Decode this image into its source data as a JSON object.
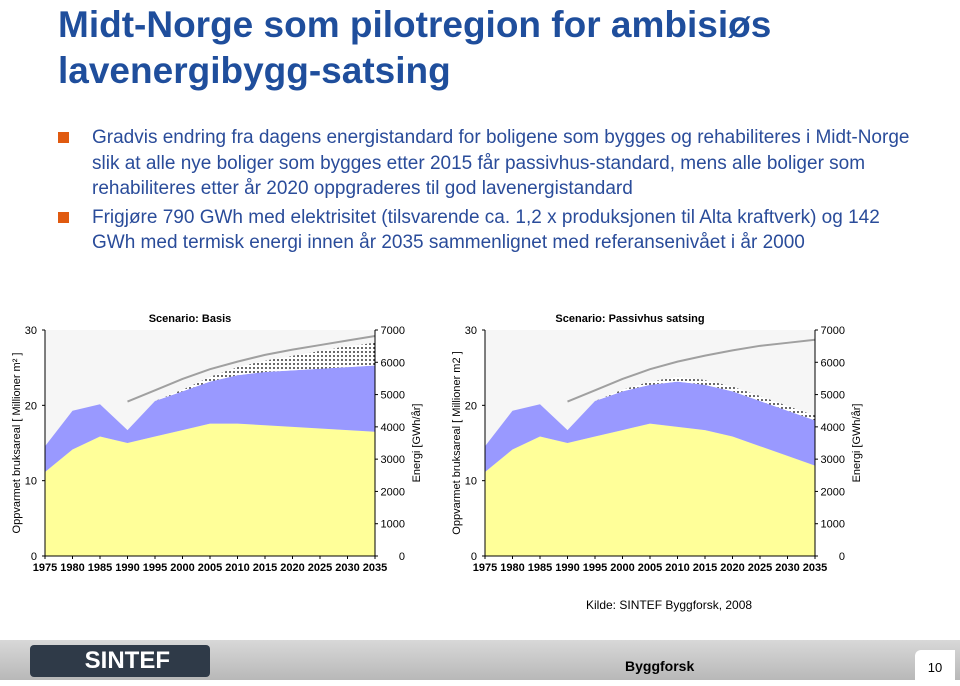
{
  "header": {
    "title": "Midt-Norge som pilotregion for ambisiøs lavenergibygg-satsing"
  },
  "bullets": [
    "Gradvis endring fra dagens energistandard for boligene som bygges og rehabiliteres i Midt-Norge slik at alle nye boliger som bygges etter 2015 får passivhus-standard, mens alle boliger som rehabiliteres etter år 2020 oppgraderes til god lavenergistandard",
    "Frigjøre 790 GWh med elektrisitet (tilsvarende ca. 1,2 x produksjonen til Alta kraftverk) og 142 GWh med termisk energi innen år 2035 sammenlignet med referansenivået i år 2000"
  ],
  "chart_data": [
    {
      "type": "area",
      "title": "Scenario: Basis",
      "stacked": true,
      "ylabel": "Oppvarmet bruksareal [ Millioner m² ]",
      "y2label": "Energi [GWh/år]",
      "x": [
        1975,
        1980,
        1985,
        1990,
        1995,
        2000,
        2005,
        2010,
        2015,
        2020,
        2025,
        2030,
        2035
      ],
      "xlim": [
        1975,
        2035
      ],
      "xticks": [
        1975,
        1980,
        1985,
        1990,
        1995,
        2000,
        2005,
        2010,
        2015,
        2020,
        2025,
        2030,
        2035
      ],
      "ylim": [
        0,
        30
      ],
      "yticks": [
        0,
        10,
        20,
        30
      ],
      "y2lim": [
        0,
        7000
      ],
      "y2ticks": [
        0,
        1000,
        2000,
        3000,
        4000,
        5000,
        6000,
        7000
      ],
      "series": [
        {
          "color": "#ffff99",
          "axis": "y2",
          "values": [
            2600,
            3300,
            3700,
            3500,
            3700,
            3900,
            4100,
            4100,
            4050,
            4000,
            3950,
            3900,
            3850
          ]
        },
        {
          "color": "#9999ff",
          "axis": "y2",
          "values": [
            800,
            1200,
            1000,
            400,
            1100,
            1200,
            1300,
            1500,
            1650,
            1750,
            1850,
            1950,
            2050
          ]
        },
        {
          "color": "#ffffff",
          "axis": "y2",
          "values": [
            0,
            0,
            0,
            0,
            0,
            50,
            150,
            250,
            350,
            450,
            550,
            650,
            700
          ]
        },
        {
          "color": "#a0a0a0",
          "axis": "y",
          "values": [
            null,
            null,
            null,
            20.5,
            22,
            23.5,
            24.8,
            25.8,
            26.7,
            27.4,
            28,
            28.6,
            29.2
          ]
        }
      ]
    },
    {
      "type": "area",
      "title": "Scenario: Passivhus satsing",
      "stacked": true,
      "ylabel": "Oppvarmet bruksareal [ Millioner m2 ]",
      "y2label": "Energi [GWh/år]",
      "x": [
        1975,
        1980,
        1985,
        1990,
        1995,
        2000,
        2005,
        2010,
        2015,
        2020,
        2025,
        2030,
        2035
      ],
      "xlim": [
        1975,
        2035
      ],
      "xticks": [
        1975,
        1980,
        1985,
        1990,
        1995,
        2000,
        2005,
        2010,
        2015,
        2020,
        2025,
        2030,
        2035
      ],
      "ylim": [
        0,
        30
      ],
      "yticks": [
        0,
        10,
        20,
        30
      ],
      "y2lim": [
        0,
        7000
      ],
      "y2ticks": [
        0,
        1000,
        2000,
        3000,
        4000,
        5000,
        6000,
        7000
      ],
      "series": [
        {
          "color": "#ffff99",
          "axis": "y2",
          "values": [
            2600,
            3300,
            3700,
            3500,
            3700,
            3900,
            4100,
            4000,
            3900,
            3700,
            3400,
            3100,
            2800
          ]
        },
        {
          "color": "#9999ff",
          "axis": "y2",
          "values": [
            800,
            1200,
            1000,
            400,
            1100,
            1200,
            1200,
            1400,
            1400,
            1400,
            1400,
            1400,
            1400
          ]
        },
        {
          "color": "#ffffff",
          "axis": "y2",
          "values": [
            0,
            0,
            0,
            0,
            0,
            50,
            100,
            150,
            150,
            150,
            150,
            150,
            150
          ]
        },
        {
          "color": "#a0a0a0",
          "axis": "y",
          "values": [
            null,
            null,
            null,
            20.5,
            22,
            23.5,
            24.8,
            25.8,
            26.6,
            27.3,
            27.9,
            28.3,
            28.7
          ]
        }
      ]
    }
  ],
  "source": "Kilde: SINTEF Byggforsk, 2008",
  "footer": {
    "logo": "SINTEF",
    "unit": "Byggforsk",
    "page": "10"
  }
}
